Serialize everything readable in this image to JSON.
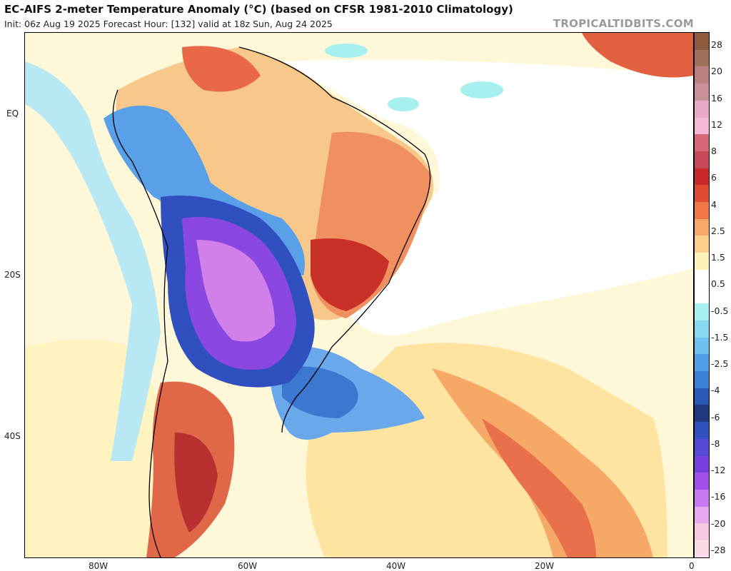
{
  "header": {
    "title": "EC-AIFS 2-meter Temperature Anomaly (°C) (based on CFSR 1981-2010 Climatology)",
    "subtitle": "Init: 06z Aug 19 2025   Forecast Hour: [132]   valid at 18z Sun, Aug 24 2025",
    "watermark": "TROPICALTIDBITS.COM"
  },
  "axes": {
    "lat_labels": [
      "EQ",
      "20S",
      "40S"
    ],
    "lon_labels": [
      "80W",
      "60W",
      "40W",
      "20W",
      "0"
    ]
  },
  "colorbar": {
    "labels": [
      "28",
      "20",
      "16",
      "12",
      "8",
      "6",
      "4",
      "2.5",
      "1.5",
      "0.5",
      "-0.5",
      "-1.5",
      "-2.5",
      "-4",
      "-6",
      "-8",
      "-12",
      "-16",
      "-20",
      "-28"
    ],
    "colors": [
      "#8c5a3c",
      "#a0705a",
      "#b88080",
      "#c89098",
      "#e8a8c8",
      "#f4b8d8",
      "#d86878",
      "#c84858",
      "#c82828",
      "#e04a30",
      "#f07848",
      "#f8a868",
      "#fcd08c",
      "#fff2b8",
      "#ffffff",
      "#ffffff",
      "#a8f0f0",
      "#88d8f0",
      "#70c0f0",
      "#50a0e8",
      "#3880d8",
      "#2858b8",
      "#203880",
      "#3050c0",
      "#5848d8",
      "#7840e0",
      "#a050e8",
      "#c878f0",
      "#e8a8f0",
      "#f8c8e0",
      "#fbd8e8"
    ]
  }
}
